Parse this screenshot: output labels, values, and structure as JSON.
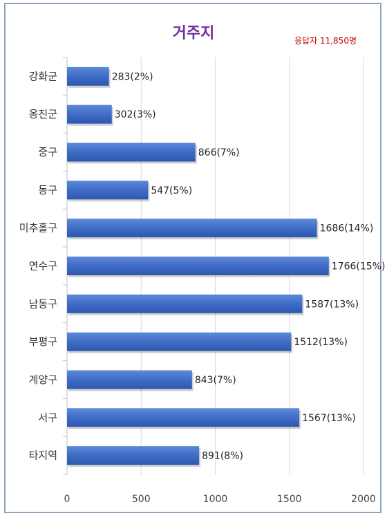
{
  "chart_data": {
    "type": "bar",
    "orientation": "horizontal",
    "title": "거주지",
    "respondents": "응답자 11,850명",
    "categories": [
      "강화군",
      "옹진군",
      "중구",
      "동구",
      "미추홀구",
      "연수구",
      "남동구",
      "부평구",
      "계양구",
      "서구",
      "타지역"
    ],
    "values": [
      283,
      302,
      866,
      547,
      1686,
      1766,
      1587,
      1512,
      843,
      1567,
      891
    ],
    "data_labels": [
      "283(2%)",
      "302(3%)",
      "866(7%)",
      "547(5%)",
      "1686(14%)",
      "1766(15%)",
      "1587(13%)",
      "1512(13%)",
      "843(7%)",
      "1567(13%)",
      "891(8%)"
    ],
    "xlim": [
      0,
      2000
    ],
    "xticks": [
      "0",
      "500",
      "1000",
      "1500",
      "2000"
    ],
    "xtick_values": [
      0,
      500,
      1000,
      1500,
      2000
    ],
    "grid": "vertical",
    "legend": "none",
    "bar_color": "#4472c4"
  }
}
